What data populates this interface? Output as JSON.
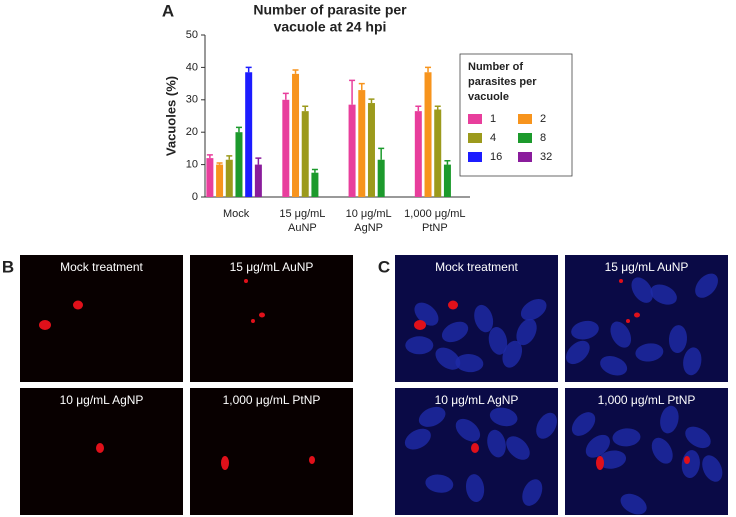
{
  "chart_data": {
    "type": "bar",
    "title": [
      "Number of parasite per",
      "vacuole at 24 hpi"
    ],
    "y_label": "Vacuoles (%)",
    "categories": [
      [
        "Mock"
      ],
      [
        "15 μg/mL",
        "AuNP"
      ],
      [
        "10 μg/mL",
        "AgNP"
      ],
      [
        "1,000 μg/mL",
        "PtNP"
      ]
    ],
    "series": [
      {
        "name": "1",
        "color": "#e83e9c",
        "values": [
          12,
          30,
          28.5,
          26.5
        ],
        "errors": [
          1,
          2,
          7.5,
          1.5
        ]
      },
      {
        "name": "2",
        "color": "#f7941d",
        "values": [
          10,
          38,
          33,
          38.5
        ],
        "errors": [
          0.5,
          1.2,
          2,
          1.5
        ]
      },
      {
        "name": "4",
        "color": "#9c9a1c",
        "values": [
          11.5,
          26.5,
          29,
          27
        ],
        "errors": [
          1.2,
          1.5,
          1.2,
          1
        ]
      },
      {
        "name": "8",
        "color": "#1c9a2c",
        "values": [
          20,
          7.5,
          11.5,
          10
        ],
        "errors": [
          1.5,
          1,
          3.5,
          1.2
        ]
      },
      {
        "name": "16",
        "color": "#1c1cff",
        "values": [
          38.5,
          null,
          null,
          null
        ],
        "errors": [
          1.5,
          null,
          null,
          null
        ]
      },
      {
        "name": "32",
        "color": "#8a1c9c",
        "values": [
          10,
          null,
          null,
          null
        ],
        "errors": [
          2,
          null,
          null,
          null
        ]
      }
    ],
    "legend_title": [
      "Number of",
      "parasites per",
      "vacuole"
    ],
    "ylim": [
      0,
      50
    ],
    "yticks": [
      0,
      10,
      20,
      30,
      40,
      50
    ]
  },
  "panels": [
    {
      "label": "A"
    },
    {
      "label": "B",
      "images": [
        "Mock treatment",
        "15 μg/mL AuNP",
        "10 μg/mL AgNP",
        "1,000 μg/mL PtNP"
      ]
    },
    {
      "label": "C",
      "images": [
        "Mock treatment",
        "15 μg/mL AuNP",
        "10 μg/mL AgNP",
        "1,000 μg/mL PtNP"
      ]
    }
  ]
}
